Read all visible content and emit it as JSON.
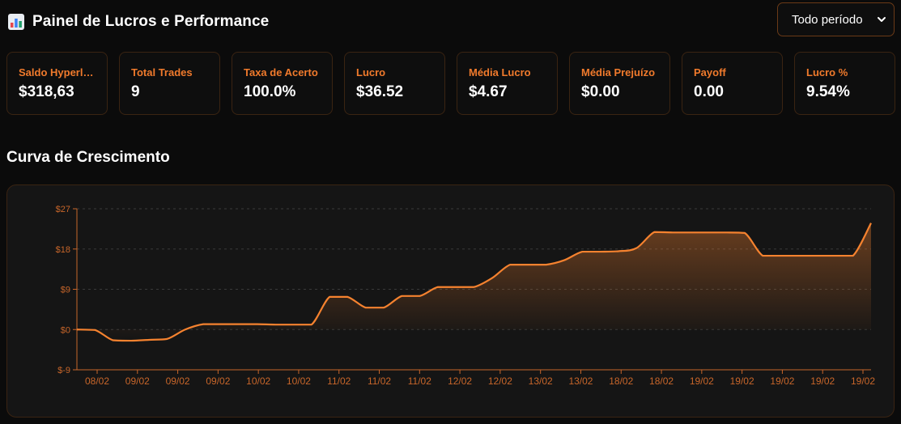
{
  "header": {
    "icon": "bar-chart-icon",
    "title": "Painel de Lucros e Performance",
    "period_select": {
      "selected": "Todo período",
      "icon": "chevron-down-icon"
    }
  },
  "cards": [
    {
      "label": "Saldo Hyperliquid",
      "value": "$318,63"
    },
    {
      "label": "Total Trades",
      "value": "9"
    },
    {
      "label": "Taxa de Acerto",
      "value": "100.0%"
    },
    {
      "label": "Lucro",
      "value": "$36.52"
    },
    {
      "label": "Média Lucro",
      "value": "$4.67"
    },
    {
      "label": "Média Prejuízo",
      "value": "$0.00"
    },
    {
      "label": "Payoff",
      "value": "0.00"
    },
    {
      "label": "Lucro %",
      "value": "9.54%"
    }
  ],
  "section_title": "Curva de Crescimento",
  "colors": {
    "accent": "#f07a2c",
    "line": "#f5822f",
    "background": "#0b0b0b",
    "panel": "#151515"
  },
  "chart_data": {
    "type": "area",
    "title": "",
    "xlabel": "",
    "ylabel": "",
    "ylim": [
      -9,
      27
    ],
    "y_ticks": [
      -9,
      0,
      9,
      18,
      27
    ],
    "y_tick_labels": [
      "$-9",
      "$0",
      "$9",
      "$18",
      "$27"
    ],
    "x_tick_labels": [
      "08/02",
      "09/02",
      "09/02",
      "09/02",
      "10/02",
      "10/02",
      "11/02",
      "11/02",
      "11/02",
      "12/02",
      "12/02",
      "13/02",
      "13/02",
      "18/02",
      "18/02",
      "19/02",
      "19/02",
      "19/02",
      "19/02",
      "19/02"
    ],
    "grid": true,
    "legend": false,
    "series": [
      {
        "values": [
          0,
          -0.1,
          -2.4,
          -2.5,
          -2.3,
          -2.1,
          0,
          1.2,
          1.2,
          1.2,
          1.2,
          1.1,
          1.1,
          1.1,
          7.3,
          7.3,
          4.9,
          4.9,
          7.5,
          7.5,
          9.5,
          9.5,
          9.5,
          11.5,
          14.5,
          14.5,
          14.5,
          15.5,
          17.4,
          17.4,
          17.5,
          18.2,
          21.8,
          21.7,
          21.7,
          21.7,
          21.7,
          21.6,
          16.5,
          16.5,
          16.5,
          16.5,
          16.5,
          16.5,
          23.8
        ]
      }
    ]
  }
}
